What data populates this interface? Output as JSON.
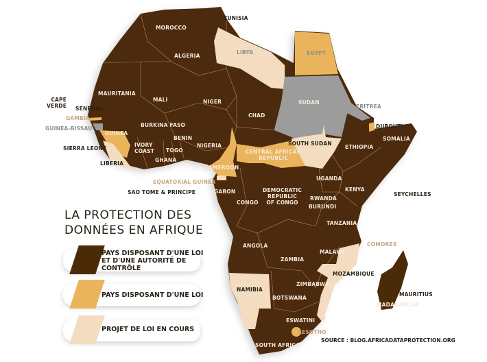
{
  "colors": {
    "law_and_authority": "#4b2a07",
    "law_only": "#eab45c",
    "bill_in_progress": "#f3dcc0",
    "no_data": "#9c9c9c",
    "borders": "#c9a27a"
  },
  "title": {
    "line1": "LA PROTECTION DES",
    "line2": "DONNÉES EN AFRIQUE"
  },
  "legend": [
    {
      "line1": "PAYS DISPOSANT D'UNE LOI",
      "line2": "ET D'UNE AUTORITÉ DE CONTRÔLE",
      "category": "law_and_authority"
    },
    {
      "line1": "PAYS DISPOSANT D'UNE LOI",
      "category": "law_only"
    },
    {
      "line1": "PROJET DE LOI EN COURS",
      "category": "bill_in_progress"
    }
  ],
  "source": "SOURCE : BLOG.AFRICADATAPROTECTION.ORG",
  "labels": {
    "tunisia": "TUNISIA",
    "morocco": "MOROCCO",
    "algeria": "ALGERIA",
    "libya": "LIBYA",
    "egypt": "EGYPT",
    "mauritania": "MAURITANIA",
    "mali": "MALI",
    "niger": "NIGER",
    "chad": "CHAD",
    "sudan": "SUDAN",
    "eritrea": "ERITREA",
    "cape_verde_1": "CAPE",
    "cape_verde_2": "VERDE",
    "senegal": "SENEGAL",
    "gambia": "GAMBIA",
    "guinea_bissau": "GUINEA-BISSAU",
    "guinea": "GUINEA",
    "burkina_faso": "BURKINA FASO",
    "sierra_leone": "SIERRA LEONE",
    "ivory_coast_1": "IVORY",
    "ivory_coast_2": "COAST",
    "benin": "BENIN",
    "togo": "TOGO",
    "nigeria": "NIGERIA",
    "ghana": "GHANA",
    "liberia": "LIBERIA",
    "car_1": "CENTRAL AFRICAN",
    "car_2": "REPUBLIC",
    "south_sudan": "SOUTH SUDAN",
    "ethiopia": "ETHIOPIA",
    "djibouti": "DJIBOUTI",
    "somalia": "SOMALIA",
    "cameroon": "CAMEROON",
    "equatorial_guinea": "EQUATORIAL GUINEA",
    "sao_tome": "SAO TOME & PRINCIPE",
    "gabon": "GABON",
    "congo": "CONGO",
    "drc_1": "DEMOCRATIC",
    "drc_2": "REPUBLIC",
    "drc_3": "OF CONGO",
    "uganda": "UGANDA",
    "kenya": "KENYA",
    "rwanda": "RWANDA",
    "burundi": "BURUNDI",
    "seychelles": "SEYCHELLES",
    "tanzania": "TANZANIA",
    "angola": "ANGOLA",
    "comores": "COMORES",
    "zambia": "ZAMBIA",
    "malawi": "MALAWI",
    "mozambique": "MOZAMBIQUE",
    "namibia": "NAMIBIA",
    "zimbabwe": "ZIMBABWE",
    "botswana": "BOTSWANA",
    "mauritius": "MAURITIUS",
    "madagascar": "MADAGASCAR",
    "eswatini": "ESWATINI",
    "lesotho": "LESOTHO",
    "south_africa": "SOUTH AFRICA"
  }
}
